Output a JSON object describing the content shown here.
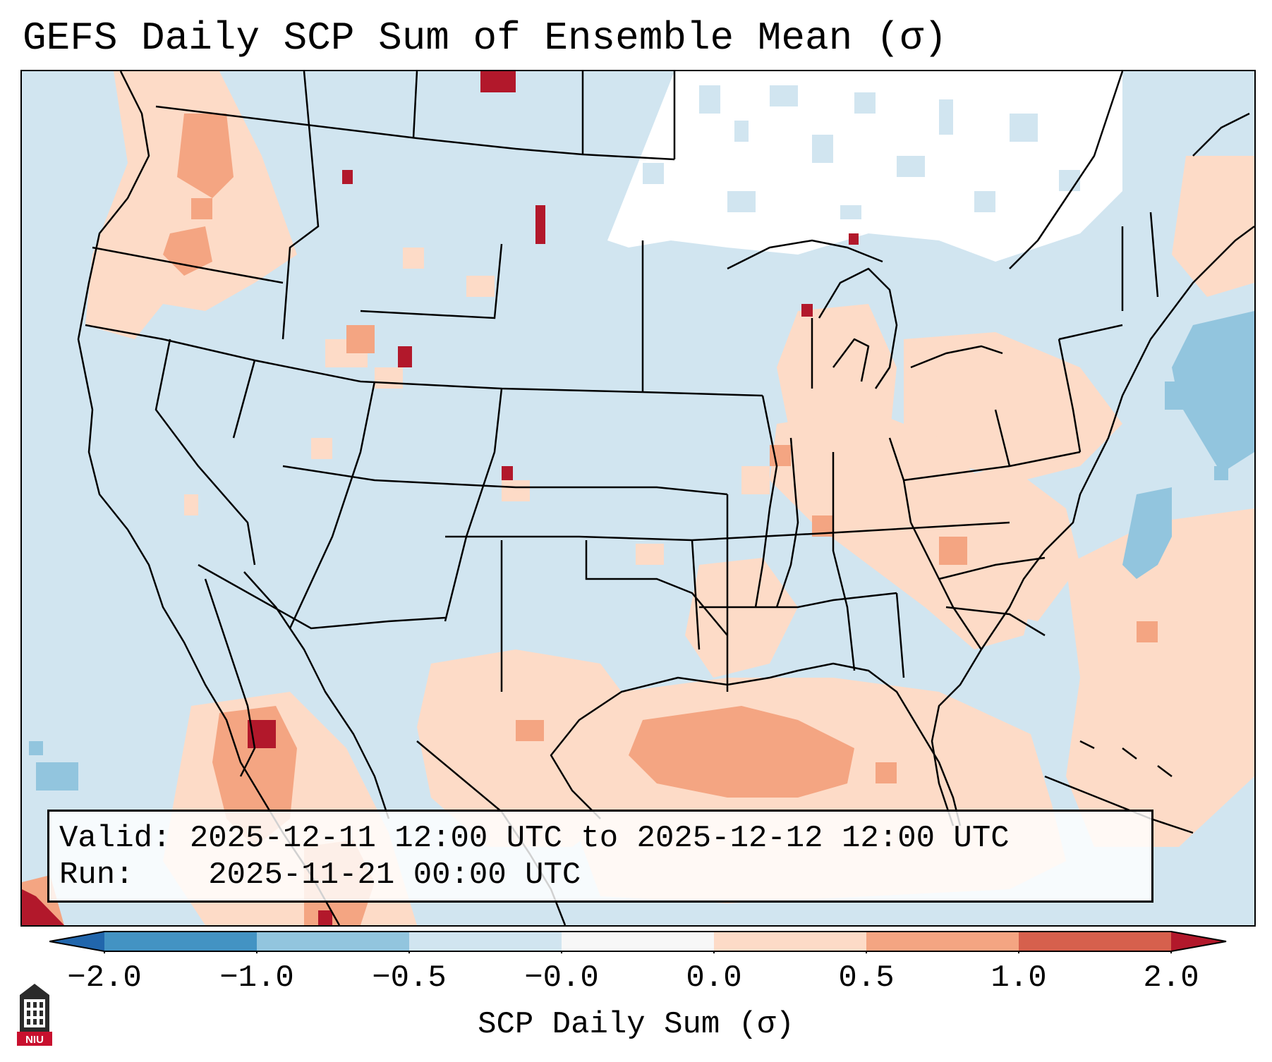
{
  "title": "GEFS Daily SCP Sum of Ensemble Mean (σ)",
  "info": {
    "valid_label": "Valid:",
    "valid_value": "2025-12-11 12:00 UTC to 2025-12-12 12:00 UTC",
    "run_label": "Run:",
    "run_value": "2025-11-21 00:00 UTC"
  },
  "colorbar": {
    "label": "SCP Daily Sum (σ)",
    "ticks": [
      "−2.0",
      "−1.0",
      "−0.5",
      "−0.0",
      "0.0",
      "0.5",
      "1.0",
      "2.0"
    ],
    "bins": [
      {
        "range": "< -2.0",
        "color": "#2166ac"
      },
      {
        "range": "-2.0 to -1.0",
        "color": "#4393c3"
      },
      {
        "range": "-1.0 to -0.5",
        "color": "#92c5de"
      },
      {
        "range": "-0.5 to -0.0",
        "color": "#d1e5f0"
      },
      {
        "range": "-0.0 to 0.0",
        "color": "#f7f7f7"
      },
      {
        "range": "0.0 to 0.5",
        "color": "#fddbc7"
      },
      {
        "range": "0.5 to 1.0",
        "color": "#f4a582"
      },
      {
        "range": "1.0 to 2.0",
        "color": "#d6604d"
      },
      {
        "range": "> 2.0",
        "color": "#b2182b"
      }
    ]
  },
  "map": {
    "background_color": "#d1e5f0",
    "no_data_color": "#ffffff",
    "border_color": "#000000"
  },
  "logo": {
    "text": "NIU",
    "icon": "university-tower-icon",
    "color": "#c8102e"
  }
}
